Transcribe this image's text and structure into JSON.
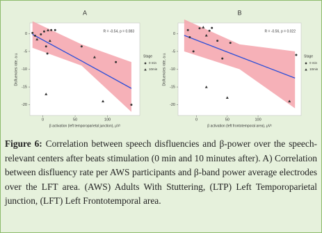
{
  "chart_data": [
    {
      "type": "scatter",
      "title": "A",
      "annotation": "R = -0.54, p = 0.083",
      "x_label": "β activation (left temporoparietal junction), μV²",
      "y_label": "Disfluencies rate, a.u.",
      "xlim": [
        -20,
        150
      ],
      "ylim": [
        -23,
        3
      ],
      "xticks": [
        0,
        50,
        100
      ],
      "yticks": [
        0,
        -5,
        -10,
        -15,
        -20
      ],
      "legend_title": "Stage",
      "series": [
        {
          "name": "0 min",
          "marker": "circle",
          "color": "#333333",
          "x": [
            -16,
            -12,
            -3,
            2,
            13,
            19,
            5,
            7,
            60,
            113,
            137
          ],
          "values": [
            0.2,
            -0.6,
            -0.2,
            0.6,
            1,
            1,
            -3.6,
            -5.6,
            -3.6,
            -8,
            -20
          ]
        },
        {
          "name": "10min",
          "marker": "triangle",
          "color": "#333333",
          "x": [
            -9,
            8,
            11,
            5,
            80,
            93
          ],
          "values": [
            -1.6,
            1,
            -2,
            -17,
            -6.6,
            -19
          ]
        }
      ],
      "fit": {
        "color": "#2b4fd8",
        "band_color": "#f5a3ab",
        "x": [
          -16,
          60,
          137
        ],
        "values": [
          -0.2,
          -7.7,
          -15.4
        ],
        "lower": [
          -4,
          -9,
          -22
        ],
        "upper": [
          3.5,
          -3,
          -8
        ]
      }
    },
    {
      "type": "scatter",
      "title": "B",
      "annotation": "R = -0.56, p = 0.022",
      "x_label": "β activation (left frontotemporal area), μV²",
      "y_label": "Disfluencies rate, a.u.",
      "xlim": [
        -30,
        170
      ],
      "ylim": [
        -23,
        3
      ],
      "xticks": [
        0,
        50,
        100
      ],
      "yticks": [
        0,
        -5,
        -10,
        -15,
        -20
      ],
      "legend_title": "Stage",
      "series": [
        {
          "name": "0 min",
          "marker": "circle",
          "color": "#333333",
          "x": [
            -14,
            -11,
            5,
            21,
            25,
            34,
            -5,
            42,
            55,
            162
          ],
          "values": [
            1,
            -1,
            1.5,
            0.8,
            1.6,
            -2,
            -5,
            -7,
            -2.6,
            -6
          ]
        },
        {
          "name": "10min",
          "marker": "triangle",
          "color": "#333333",
          "x": [
            11,
            16,
            16,
            50,
            151
          ],
          "values": [
            1.8,
            -0.5,
            -15,
            -18,
            -19
          ]
        }
      ],
      "fit": {
        "color": "#2b4fd8",
        "band_color": "#f5a3ab",
        "x": [
          -20,
          70,
          160
        ],
        "values": [
          -0.5,
          -6.5,
          -12.5
        ],
        "lower": [
          -5,
          -10,
          -21
        ],
        "upper": [
          4,
          -3,
          -5
        ]
      }
    }
  ],
  "caption": {
    "label": "Figure 6:",
    "text": "Correlation between speech disfluencies and β-power over the speech-relevant centers after beats stimulation (0 min and 10 minutes after). A) Correlation between disfluency rate per AWS participants and β-band power average electrodes over the LFT area. (AWS) Adults With Stuttering, (LTP) Left Temporoparietal junction, (LFT) Left Frontotemporal area."
  }
}
